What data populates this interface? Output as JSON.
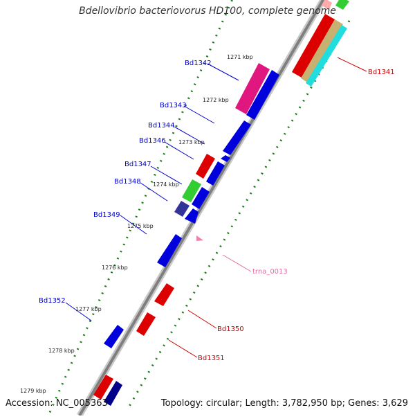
{
  "title": "Bdellovibrio bacteriovorus HD100, complete genome",
  "accession": "Accession: NC_005363",
  "topology": "Topology: circular; Length: 3,782,950 bp; Genes: 3,629",
  "colors": {
    "backbone": "#8a8a8a",
    "tick": "#1a7a1a",
    "forward_label": "#0000cc",
    "reverse_label": "#cc0000",
    "trna_label": "#e070a0"
  },
  "kbp_ticks": [
    "1271 kbp",
    "1272 kbp",
    "1273 kbp",
    "1274 kbp",
    "1275 kbp",
    "1276 kbp",
    "1277 kbp",
    "1278 kbp",
    "1279 kbp"
  ],
  "genes": [
    {
      "label": "Bd1341",
      "strand": "reverse",
      "color": "#cc0000"
    },
    {
      "label": "Bd1342",
      "strand": "forward",
      "color": "#0000cc"
    },
    {
      "label": "Bd1343",
      "strand": "forward",
      "color": "#0000cc"
    },
    {
      "label": "Bd1344",
      "strand": "forward",
      "color": "#0000cc"
    },
    {
      "label": "Bd1346",
      "strand": "forward",
      "color": "#0000cc"
    },
    {
      "label": "Bd1347",
      "strand": "forward",
      "color": "#0000cc"
    },
    {
      "label": "Bd1348",
      "strand": "forward",
      "color": "#0000cc"
    },
    {
      "label": "Bd1349",
      "strand": "forward",
      "color": "#0000cc"
    },
    {
      "label": "Bd1352",
      "strand": "forward",
      "color": "#0000cc"
    },
    {
      "label": "trna_0013",
      "strand": "reverse",
      "color": "#e070a0"
    },
    {
      "label": "Bd1350",
      "strand": "reverse",
      "color": "#cc0000"
    },
    {
      "label": "Bd1351",
      "strand": "reverse",
      "color": "#cc0000"
    }
  ]
}
